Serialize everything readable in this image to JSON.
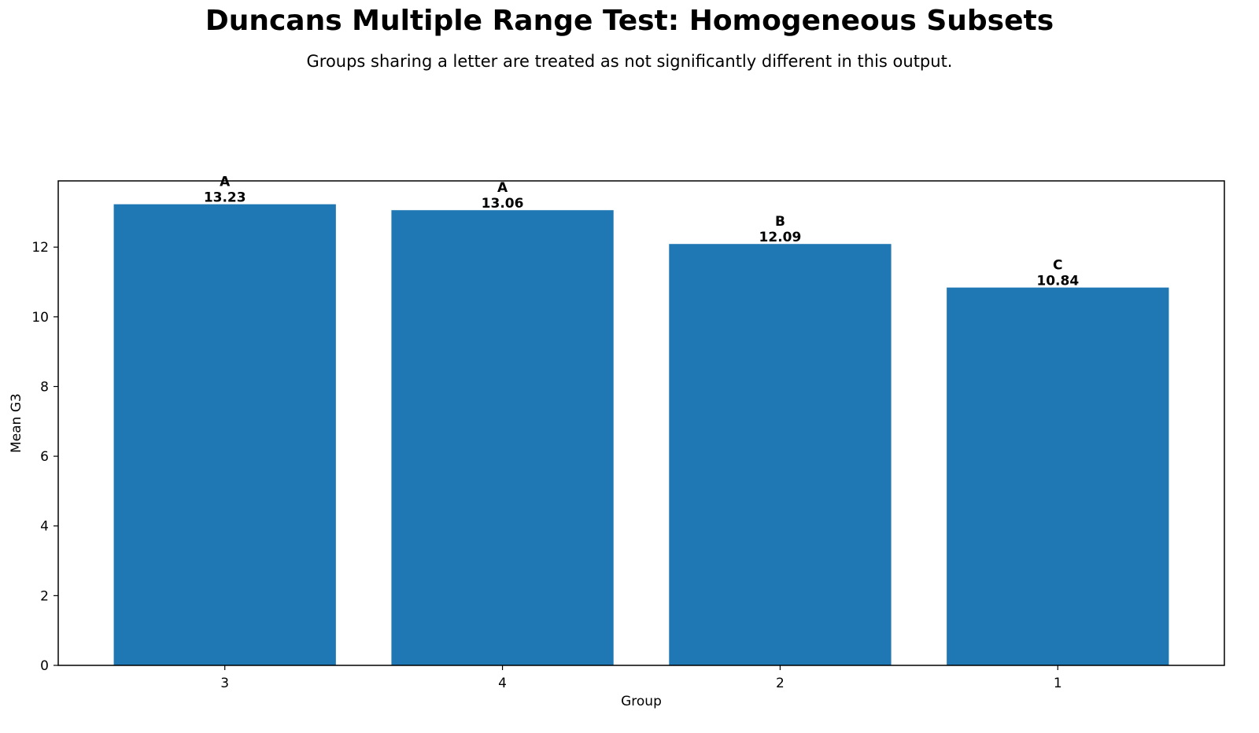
{
  "chart_data": {
    "type": "bar",
    "title": "Duncans Multiple Range Test: Homogeneous Subsets",
    "subtitle": "Groups sharing a letter are treated as not significantly different in this output.",
    "xlabel": "Group",
    "ylabel": "Mean G3",
    "categories": [
      "3",
      "4",
      "2",
      "1"
    ],
    "values": [
      13.23,
      13.06,
      12.09,
      10.84
    ],
    "value_labels": [
      "13.23",
      "13.06",
      "12.09",
      "10.84"
    ],
    "group_letters": [
      "A",
      "A",
      "B",
      "C"
    ],
    "ylim": [
      0,
      13.9
    ],
    "yticks": [
      0,
      2,
      4,
      6,
      8,
      10,
      12
    ],
    "bar_color": "#1f77b4",
    "grid": false,
    "legend": "none"
  }
}
